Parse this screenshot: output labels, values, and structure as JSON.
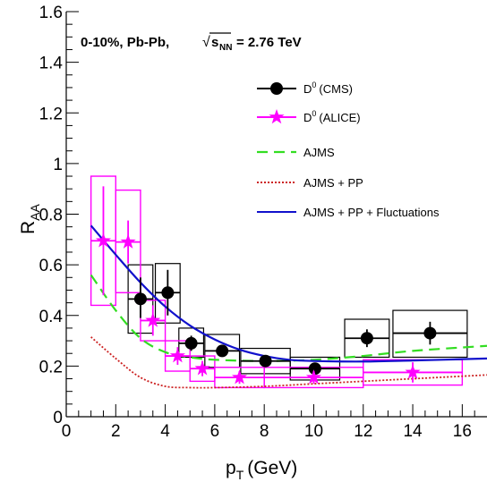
{
  "chart_data": {
    "type": "scatter",
    "title": "",
    "annotation": {
      "prefix": "0-10%, Pb-Pb,",
      "sqrt_symbol": "√",
      "s_text": "s",
      "s_sub": "NN",
      "suffix": "= 2.76 TeV"
    },
    "xlabel": {
      "main": "p",
      "sub": "T",
      "unit": "(GeV)"
    },
    "ylabel": {
      "main": "R",
      "sub": "AA"
    },
    "xlim": [
      0,
      17
    ],
    "ylim": [
      0,
      1.6
    ],
    "xticks": [
      0,
      2,
      4,
      6,
      8,
      10,
      12,
      14,
      16
    ],
    "yticks": [
      0,
      0.2,
      0.4,
      0.6,
      0.8,
      1,
      1.2,
      1.4,
      1.6
    ],
    "xtick_labels": [
      "0",
      "2",
      "4",
      "6",
      "8",
      "10",
      "12",
      "14",
      "16"
    ],
    "ytick_labels": [
      "0",
      "0.2",
      "0.4",
      "0.6",
      "0.8",
      "1",
      "1.2",
      "1.4",
      "1.6"
    ],
    "legend_position": "top-right",
    "series": [
      {
        "name_main": "D",
        "name_sup": "0",
        "name_tail": "(CMS)",
        "color": "#000000",
        "marker": "circle",
        "points": [
          {
            "x": 3.0,
            "y": 0.465,
            "xerr": 0.5,
            "stat": [
              0.55,
              0.39
            ],
            "sys": [
              0.6,
              0.33
            ]
          },
          {
            "x": 4.1,
            "y": 0.49,
            "xerr": 0.5,
            "stat": [
              0.58,
              0.4
            ],
            "sys": [
              0.605,
              0.37
            ]
          },
          {
            "x": 5.05,
            "y": 0.29,
            "xerr": 0.5,
            "stat": [
              0.32,
              0.26
            ],
            "sys": [
              0.35,
              0.235
            ]
          },
          {
            "x": 6.3,
            "y": 0.26,
            "xerr": 0.7,
            "stat": [
              0.28,
              0.24
            ],
            "sys": [
              0.325,
              0.195
            ]
          },
          {
            "x": 8.05,
            "y": 0.22,
            "xerr": 1.0,
            "stat": [
              0.235,
              0.205
            ],
            "sys": [
              0.27,
              0.17
            ]
          },
          {
            "x": 10.05,
            "y": 0.19,
            "xerr": 1.0,
            "stat": [
              0.21,
              0.17
            ],
            "sys": [
              0.235,
              0.145
            ]
          },
          {
            "x": 12.15,
            "y": 0.31,
            "xerr": 0.9,
            "stat": [
              0.345,
              0.275
            ],
            "sys": [
              0.385,
              0.235
            ]
          },
          {
            "x": 14.7,
            "y": 0.33,
            "xerr": 1.5,
            "stat": [
              0.375,
              0.285
            ],
            "sys": [
              0.42,
              0.235
            ]
          }
        ]
      },
      {
        "name_main": "D",
        "name_sup": "0",
        "name_tail": "(ALICE)",
        "color": "#ff00ff",
        "marker": "star",
        "points": [
          {
            "x": 1.5,
            "y": 0.695,
            "xerr": 0.5,
            "stat": [
              0.91,
              0.48
            ],
            "sys": [
              0.95,
              0.44
            ]
          },
          {
            "x": 2.5,
            "y": 0.69,
            "xerr": 0.5,
            "stat": [
              0.775,
              0.605
            ],
            "sys": [
              0.895,
              0.49
            ]
          },
          {
            "x": 3.5,
            "y": 0.38,
            "xerr": 0.5,
            "stat": [
              0.44,
              0.32
            ],
            "sys": [
              0.46,
              0.3
            ]
          },
          {
            "x": 4.5,
            "y": 0.24,
            "xerr": 0.5,
            "stat": [
              0.275,
              0.205
            ],
            "sys": [
              0.3,
              0.18
            ]
          },
          {
            "x": 5.5,
            "y": 0.19,
            "xerr": 0.5,
            "stat": [
              0.22,
              0.16
            ],
            "sys": [
              0.24,
              0.14
            ]
          },
          {
            "x": 7.0,
            "y": 0.155,
            "xerr": 1.0,
            "stat": [
              0.18,
              0.13
            ],
            "sys": [
              0.195,
              0.115
            ]
          },
          {
            "x": 10.0,
            "y": 0.155,
            "xerr": 2.0,
            "stat": [
              0.18,
              0.13
            ],
            "sys": [
              0.195,
              0.115
            ]
          },
          {
            "x": 14.0,
            "y": 0.175,
            "xerr": 2.0,
            "stat": [
              0.215,
              0.135
            ],
            "sys": [
              0.225,
              0.125
            ]
          }
        ]
      }
    ],
    "curves": [
      {
        "name": "AJMS",
        "color": "#33dd22",
        "dash": "12,7",
        "points": [
          [
            1,
            0.56
          ],
          [
            2,
            0.42
          ],
          [
            3,
            0.31
          ],
          [
            4,
            0.255
          ],
          [
            5,
            0.235
          ],
          [
            6,
            0.225
          ],
          [
            8,
            0.22
          ],
          [
            10,
            0.225
          ],
          [
            12,
            0.24
          ],
          [
            14,
            0.26
          ],
          [
            17,
            0.28
          ]
        ]
      },
      {
        "name": "AJMS + PP",
        "color": "#cc2222",
        "dash": "2,2",
        "points": [
          [
            1,
            0.315
          ],
          [
            2,
            0.23
          ],
          [
            3,
            0.155
          ],
          [
            4,
            0.12
          ],
          [
            5,
            0.115
          ],
          [
            6,
            0.115
          ],
          [
            8,
            0.12
          ],
          [
            10,
            0.13
          ],
          [
            12,
            0.14
          ],
          [
            14,
            0.15
          ],
          [
            17,
            0.165
          ]
        ]
      },
      {
        "name": "AJMS + PP + Fluctuations",
        "color": "#1111cc",
        "dash": "",
        "points": [
          [
            1,
            0.755
          ],
          [
            2,
            0.64
          ],
          [
            3,
            0.53
          ],
          [
            4,
            0.435
          ],
          [
            5,
            0.36
          ],
          [
            6,
            0.305
          ],
          [
            7,
            0.265
          ],
          [
            8,
            0.24
          ],
          [
            9,
            0.225
          ],
          [
            10,
            0.22
          ],
          [
            12,
            0.218
          ],
          [
            14,
            0.222
          ],
          [
            17,
            0.23
          ]
        ]
      }
    ]
  }
}
